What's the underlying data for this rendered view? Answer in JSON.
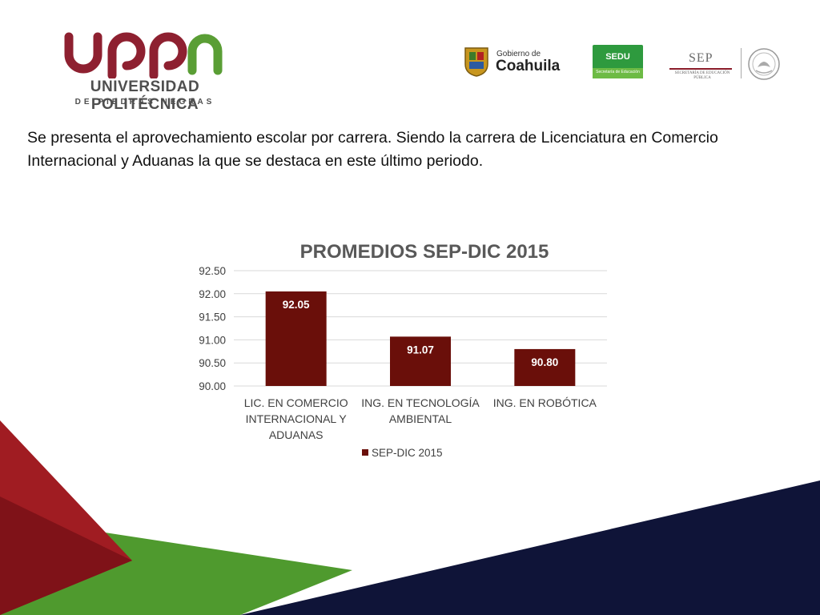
{
  "header": {
    "uppn_logo": {
      "mark": "uppn",
      "name": "UNIVERSIDAD POLITÉCNICA",
      "subname": "DE PIEDRAS NEGRAS"
    },
    "coahuila_logo": {
      "small": "Gobierno de",
      "big": "Coahuila",
      "icon": "coahuila-crest-icon"
    },
    "sedu_logo": {
      "text": "SEDU",
      "sub": "Secretaría de Educación"
    },
    "sep_logo": {
      "text": "SEP",
      "sub": "SECRETARÍA DE EDUCACIÓN PÚBLICA",
      "icon": "mexico-seal-icon"
    }
  },
  "intro_text": "Se presenta el aprovechamiento escolar por carrera. Siendo la carrera de Licenciatura en Comercio Internacional y Aduanas la que se destaca en este último periodo.",
  "colors": {
    "bar": "#6a0f0a",
    "accent_red": "#a01c22",
    "accent_green": "#4f9a2e",
    "navy": "#0f1438",
    "logo_red": "#8e2030",
    "logo_green": "#5a9e35"
  },
  "chart_data": {
    "type": "bar",
    "title": "PROMEDIOS SEP-DIC 2015",
    "categories": [
      [
        "LIC. EN COMERCIO",
        "INTERNACIONAL Y",
        "ADUANAS"
      ],
      [
        "ING. EN TECNOLOGÍA",
        "AMBIENTAL"
      ],
      [
        "ING. EN ROBÓTICA"
      ]
    ],
    "series": [
      {
        "name": "SEP-DIC 2015",
        "values": [
          92.05,
          91.07,
          90.8
        ],
        "labels": [
          "92.05",
          "91.07",
          "90.80"
        ]
      }
    ],
    "ylim": [
      90.0,
      92.5
    ],
    "yticks": [
      "90.00",
      "90.50",
      "91.00",
      "91.50",
      "92.00",
      "92.50"
    ],
    "grid": true,
    "legend": "bottom"
  }
}
